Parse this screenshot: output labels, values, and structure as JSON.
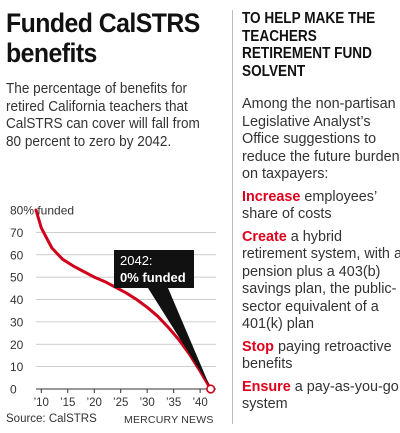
{
  "headline": "Funded CalSTRS benefits",
  "description": "The percentage of benefits for retired California teachers that CalSTRS can cover will fall from 80 percent to zero by 2042.",
  "sidebar": {
    "heading": "TO HELP MAKE THE TEACHERS RETIREMENT FUND SOLVENT",
    "intro": "Among the non-partisan Legislative Analyst’s Office suggestions to reduce the future burden on taxpayers:",
    "suggestions": [
      {
        "keyword": "Increase",
        "text": " employees’ share of costs"
      },
      {
        "keyword": "Create",
        "text": " a hybrid retirement system, with a pension plus a 403(b) savings plan, the public-sector equivalent of a 401(k) plan"
      },
      {
        "keyword": "Stop",
        "text": " paying retroactive benefits"
      },
      {
        "keyword": "Ensure",
        "text": " a pay-as-you-go system"
      }
    ]
  },
  "source": "Source: CalSTRS",
  "credit": "MERCURY NEWS",
  "colors": {
    "line": "#d0021b",
    "keyword": "#e0001b",
    "callout_bg": "#111111"
  },
  "chart_data": {
    "type": "line",
    "x": [
      2009,
      2010,
      2012,
      2014,
      2016,
      2018,
      2020,
      2022,
      2024,
      2026,
      2028,
      2030,
      2032,
      2034,
      2036,
      2038,
      2040,
      2041,
      2042
    ],
    "y": [
      80,
      72,
      63,
      58,
      55,
      52.5,
      50,
      48,
      45.5,
      43,
      40,
      36.5,
      32.5,
      27.5,
      22,
      15.5,
      8,
      4,
      0
    ],
    "xlim": [
      2009,
      2043
    ],
    "ylim": [
      0,
      80
    ],
    "xticks": [
      2010,
      2015,
      2020,
      2025,
      2030,
      2035,
      2040
    ],
    "xtick_labels": [
      "’10",
      "’15",
      "’20",
      "’25",
      "’30",
      "’35",
      "’40"
    ],
    "yticks": [
      0,
      10,
      20,
      30,
      40,
      50,
      60,
      70
    ],
    "top_label": "80% funded",
    "grid": "horizontal",
    "annotations": [
      {
        "x": 2042,
        "y": 0,
        "line1": "2042:",
        "line2": "0% funded"
      }
    ]
  }
}
